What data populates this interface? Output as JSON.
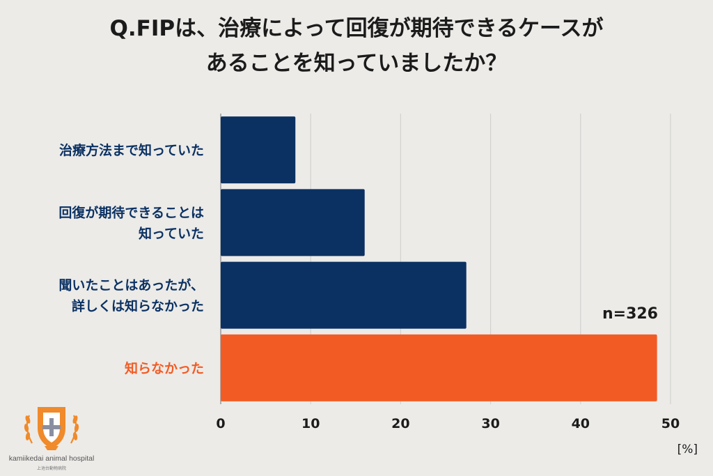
{
  "title_lines": [
    "Q.FIPは、治療によって回復が期待できるケースが",
    "あることを知っていましたか？"
  ],
  "chart_data": {
    "type": "bar",
    "orientation": "horizontal",
    "categories": [
      [
        "治療方法まで知っていた"
      ],
      [
        "回復が期待できることは",
        "知っていた"
      ],
      [
        "聞いたことはあったが、",
        "詳しくは知らなかった"
      ],
      [
        "知らなかった"
      ]
    ],
    "values": [
      8.3,
      16.0,
      27.3,
      48.5
    ],
    "bar_colors": [
      "#0b3162",
      "#0b3162",
      "#0b3162",
      "#f25c24"
    ],
    "label_colors": [
      "#0b3162",
      "#0b3162",
      "#0b3162",
      "#f25c24"
    ],
    "xlim": [
      0,
      50
    ],
    "xticks": [
      "0",
      "10",
      "20",
      "30",
      "40",
      "50"
    ],
    "grid": true,
    "unit": "[%]",
    "annotation": "n=326"
  },
  "logo": {
    "name": "kamiikedai animal hospital",
    "sub": "上池台動物病院"
  }
}
